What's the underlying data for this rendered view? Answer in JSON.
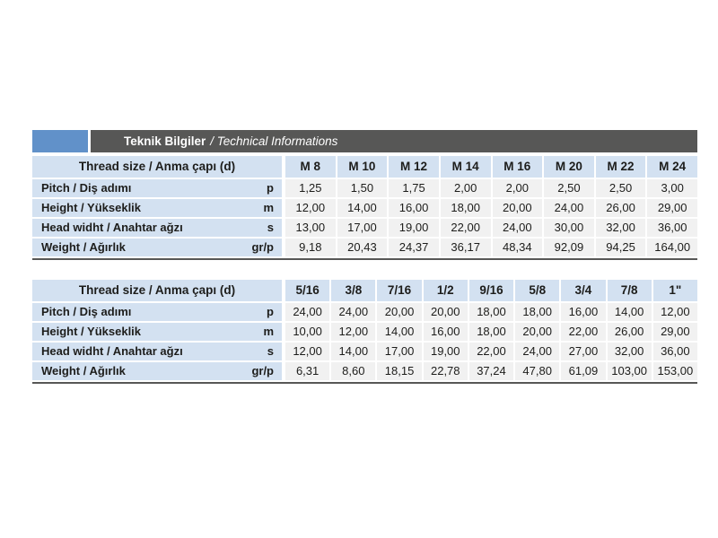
{
  "header": {
    "title_bold": "Teknik Bilgiler",
    "title_italic": "/ Technical Informations"
  },
  "colors": {
    "accent_blue": "#6191c9",
    "bar_dark": "#575756",
    "cell_light_blue": "#d3e1f1",
    "cell_light_gray": "#f1f1f1",
    "text": "#1d1d1b"
  },
  "tables": [
    {
      "header_label": "Thread size / Anma çapı (d)",
      "columns": [
        "M 8",
        "M 10",
        "M 12",
        "M 14",
        "M 16",
        "M 20",
        "M 22",
        "M 24"
      ],
      "rows": [
        {
          "label": "Pitch / Diş adımı",
          "symbol": "p",
          "values": [
            "1,25",
            "1,50",
            "1,75",
            "2,00",
            "2,00",
            "2,50",
            "2,50",
            "3,00"
          ]
        },
        {
          "label": "Height / Yükseklik",
          "symbol": "m",
          "values": [
            "12,00",
            "14,00",
            "16,00",
            "18,00",
            "20,00",
            "24,00",
            "26,00",
            "29,00"
          ]
        },
        {
          "label": "Head widht / Anahtar ağzı",
          "symbol": "s",
          "values": [
            "13,00",
            "17,00",
            "19,00",
            "22,00",
            "24,00",
            "30,00",
            "32,00",
            "36,00"
          ]
        },
        {
          "label": "Weight / Ağırlık",
          "symbol": "gr/p",
          "values": [
            "9,18",
            "20,43",
            "24,37",
            "36,17",
            "48,34",
            "92,09",
            "94,25",
            "164,00"
          ]
        }
      ]
    },
    {
      "header_label": "Thread size / Anma çapı (d)",
      "columns": [
        "5/16",
        "3/8",
        "7/16",
        "1/2",
        "9/16",
        "5/8",
        "3/4",
        "7/8",
        "1\""
      ],
      "rows": [
        {
          "label": "Pitch / Diş adımı",
          "symbol": "p",
          "values": [
            "24,00",
            "24,00",
            "20,00",
            "20,00",
            "18,00",
            "18,00",
            "16,00",
            "14,00",
            "12,00"
          ]
        },
        {
          "label": "Height / Yükseklik",
          "symbol": "m",
          "values": [
            "10,00",
            "12,00",
            "14,00",
            "16,00",
            "18,00",
            "20,00",
            "22,00",
            "26,00",
            "29,00"
          ]
        },
        {
          "label": "Head widht / Anahtar ağzı",
          "symbol": "s",
          "values": [
            "12,00",
            "14,00",
            "17,00",
            "19,00",
            "22,00",
            "24,00",
            "27,00",
            "32,00",
            "36,00"
          ]
        },
        {
          "label": "Weight / Ağırlık",
          "symbol": "gr/p",
          "values": [
            "6,31",
            "8,60",
            "18,15",
            "22,78",
            "37,24",
            "47,80",
            "61,09",
            "103,00",
            "153,00"
          ]
        }
      ]
    }
  ]
}
